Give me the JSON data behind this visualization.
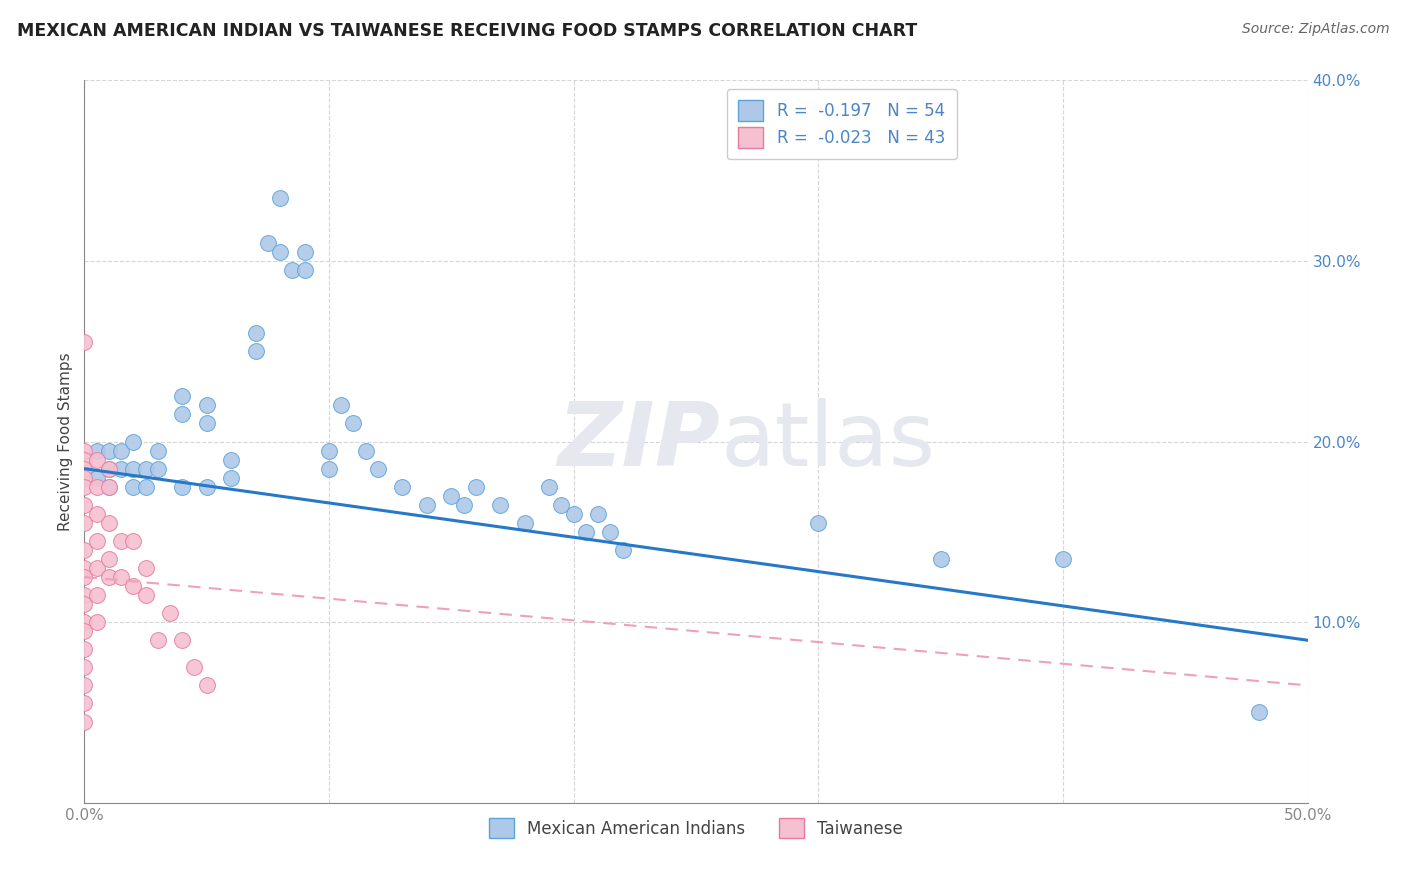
{
  "title": "MEXICAN AMERICAN INDIAN VS TAIWANESE RECEIVING FOOD STAMPS CORRELATION CHART",
  "source": "Source: ZipAtlas.com",
  "xlabel": "",
  "ylabel": "Receiving Food Stamps",
  "xlim": [
    0.0,
    0.5
  ],
  "ylim": [
    0.0,
    0.4
  ],
  "xticks": [
    0.0,
    0.1,
    0.2,
    0.3,
    0.4,
    0.5
  ],
  "yticks": [
    0.0,
    0.1,
    0.2,
    0.3,
    0.4
  ],
  "xticklabels": [
    "0.0%",
    "",
    "",
    "",
    "",
    "50.0%"
  ],
  "yticklabels": [
    "",
    "10.0%",
    "20.0%",
    "30.0%",
    "40.0%"
  ],
  "blue_r": -0.197,
  "blue_n": 54,
  "pink_r": -0.023,
  "pink_n": 43,
  "blue_color": "#aec9e8",
  "pink_color": "#f5c0d0",
  "blue_edge_color": "#5ba3d9",
  "pink_edge_color": "#e87aa0",
  "blue_line_color": "#2878c8",
  "pink_line_color": "#f0a0b8",
  "text_color": "#4a86c8",
  "axis_color": "#888888",
  "grid_color": "#cccccc",
  "watermark_color": "#e5e8ef",
  "legend_label_blue": "Mexican American Indians",
  "legend_label_pink": "Taiwanese",
  "blue_line_x0": 0.0,
  "blue_line_y0": 0.185,
  "blue_line_x1": 0.5,
  "blue_line_y1": 0.09,
  "pink_line_x0": 0.0,
  "pink_line_y0": 0.125,
  "pink_line_x1": 0.5,
  "pink_line_y1": 0.065,
  "blue_points_x": [
    0.005,
    0.005,
    0.01,
    0.01,
    0.01,
    0.015,
    0.015,
    0.02,
    0.02,
    0.02,
    0.025,
    0.025,
    0.03,
    0.03,
    0.04,
    0.04,
    0.04,
    0.05,
    0.05,
    0.05,
    0.06,
    0.06,
    0.07,
    0.07,
    0.075,
    0.08,
    0.08,
    0.085,
    0.09,
    0.09,
    0.1,
    0.1,
    0.105,
    0.11,
    0.115,
    0.12,
    0.13,
    0.14,
    0.15,
    0.155,
    0.16,
    0.17,
    0.18,
    0.19,
    0.195,
    0.2,
    0.205,
    0.21,
    0.215,
    0.22,
    0.3,
    0.35,
    0.4,
    0.48
  ],
  "blue_points_y": [
    0.195,
    0.18,
    0.195,
    0.185,
    0.175,
    0.195,
    0.185,
    0.2,
    0.185,
    0.175,
    0.185,
    0.175,
    0.185,
    0.195,
    0.225,
    0.215,
    0.175,
    0.22,
    0.21,
    0.175,
    0.19,
    0.18,
    0.26,
    0.25,
    0.31,
    0.335,
    0.305,
    0.295,
    0.305,
    0.295,
    0.195,
    0.185,
    0.22,
    0.21,
    0.195,
    0.185,
    0.175,
    0.165,
    0.17,
    0.165,
    0.175,
    0.165,
    0.155,
    0.175,
    0.165,
    0.16,
    0.15,
    0.16,
    0.15,
    0.14,
    0.155,
    0.135,
    0.135,
    0.05
  ],
  "pink_points_x": [
    0.0,
    0.0,
    0.0,
    0.0,
    0.0,
    0.0,
    0.0,
    0.0,
    0.0,
    0.0,
    0.0,
    0.0,
    0.0,
    0.0,
    0.0,
    0.0,
    0.0,
    0.0,
    0.0,
    0.0,
    0.005,
    0.005,
    0.005,
    0.005,
    0.005,
    0.005,
    0.005,
    0.01,
    0.01,
    0.01,
    0.01,
    0.01,
    0.015,
    0.015,
    0.02,
    0.02,
    0.025,
    0.025,
    0.03,
    0.035,
    0.04,
    0.045,
    0.05
  ],
  "pink_points_y": [
    0.255,
    0.195,
    0.19,
    0.185,
    0.18,
    0.175,
    0.165,
    0.155,
    0.14,
    0.13,
    0.125,
    0.115,
    0.11,
    0.1,
    0.095,
    0.085,
    0.075,
    0.065,
    0.055,
    0.045,
    0.19,
    0.175,
    0.16,
    0.145,
    0.13,
    0.115,
    0.1,
    0.185,
    0.175,
    0.155,
    0.135,
    0.125,
    0.145,
    0.125,
    0.145,
    0.12,
    0.13,
    0.115,
    0.09,
    0.105,
    0.09,
    0.075,
    0.065
  ]
}
